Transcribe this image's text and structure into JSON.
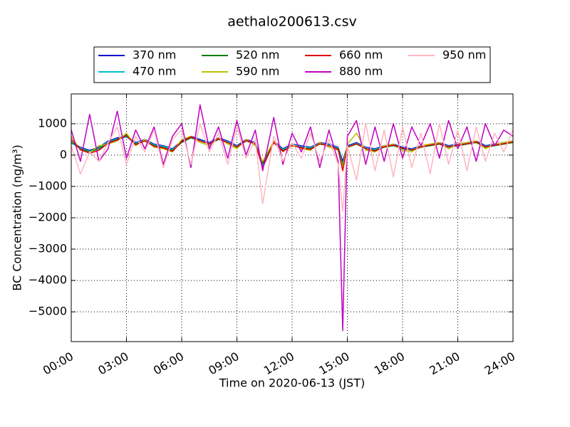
{
  "chart_data": {
    "type": "line",
    "title": "aethalo200613.csv",
    "x_label": "Time on 2020-06-13 (JST)",
    "y_label": "BC Concentration (ng/m³)",
    "x": [
      0,
      0.5,
      1,
      1.5,
      2,
      2.5,
      3,
      3.5,
      4,
      4.5,
      5,
      5.5,
      6,
      6.5,
      7,
      7.5,
      8,
      8.5,
      9,
      9.5,
      10,
      10.4,
      11,
      11.5,
      12,
      12.5,
      13,
      13.5,
      14,
      14.5,
      14.75,
      15,
      15.5,
      16,
      16.5,
      17,
      17.5,
      18,
      18.5,
      19,
      19.5,
      20,
      20.5,
      21,
      21.5,
      22,
      22.5,
      23,
      23.5,
      24
    ],
    "xlim": [
      0,
      24
    ],
    "xticks": [
      {
        "value": 0,
        "label": "00:00"
      },
      {
        "value": 3,
        "label": "03:00"
      },
      {
        "value": 6,
        "label": "06:00"
      },
      {
        "value": 9,
        "label": "09:00"
      },
      {
        "value": 12,
        "label": "12:00"
      },
      {
        "value": 15,
        "label": "15:00"
      },
      {
        "value": 18,
        "label": "18:00"
      },
      {
        "value": 21,
        "label": "21:00"
      },
      {
        "value": 24,
        "label": "24:00"
      }
    ],
    "ylim": [
      -5950,
      1950
    ],
    "yticks": [
      {
        "value": -5000,
        "label": "−5000"
      },
      {
        "value": -4000,
        "label": "−4000"
      },
      {
        "value": -3000,
        "label": "−3000"
      },
      {
        "value": -2000,
        "label": "−2000"
      },
      {
        "value": -1000,
        "label": "−1000"
      },
      0,
      1000
    ],
    "grid": true,
    "series": [
      {
        "name": "370 nm",
        "color": "#0000cc",
        "values": [
          400,
          250,
          150,
          250,
          450,
          550,
          600,
          400,
          500,
          350,
          300,
          200,
          450,
          600,
          500,
          400,
          550,
          450,
          300,
          500,
          400,
          -300,
          450,
          200,
          350,
          300,
          250,
          400,
          350,
          250,
          -200,
          300,
          400,
          250,
          200,
          300,
          350,
          250,
          200,
          300,
          350,
          400,
          300,
          350,
          400,
          450,
          300,
          350,
          400,
          450
        ]
      },
      {
        "name": "470 nm",
        "color": "#00bfcf",
        "values": [
          380,
          230,
          120,
          230,
          430,
          520,
          570,
          380,
          470,
          330,
          280,
          180,
          420,
          570,
          470,
          380,
          520,
          430,
          280,
          470,
          380,
          -350,
          420,
          180,
          330,
          280,
          230,
          380,
          330,
          230,
          -300,
          280,
          380,
          230,
          180,
          280,
          330,
          230,
          180,
          280,
          330,
          380,
          280,
          330,
          380,
          420,
          280,
          330,
          380,
          420
        ]
      },
      {
        "name": "520 nm",
        "color": "#007f00",
        "values": [
          420,
          200,
          100,
          200,
          400,
          500,
          650,
          350,
          450,
          300,
          250,
          150,
          400,
          550,
          450,
          350,
          500,
          400,
          250,
          450,
          350,
          -250,
          400,
          150,
          300,
          250,
          200,
          350,
          300,
          200,
          -350,
          250,
          350,
          200,
          150,
          250,
          300,
          200,
          150,
          250,
          300,
          350,
          250,
          300,
          350,
          400,
          250,
          300,
          350,
          400
        ]
      },
      {
        "name": "590 nm",
        "color": "#bfbf00",
        "values": [
          600,
          150,
          80,
          300,
          350,
          450,
          700,
          300,
          500,
          250,
          200,
          100,
          500,
          600,
          400,
          300,
          550,
          350,
          200,
          500,
          300,
          -200,
          450,
          100,
          350,
          200,
          150,
          400,
          250,
          150,
          -400,
          350,
          700,
          150,
          100,
          300,
          350,
          150,
          100,
          300,
          350,
          400,
          200,
          350,
          400,
          450,
          200,
          350,
          400,
          450
        ]
      },
      {
        "name": "660 nm",
        "color": "#e00000",
        "values": [
          500,
          180,
          60,
          150,
          380,
          480,
          620,
          330,
          450,
          280,
          230,
          120,
          430,
          580,
          450,
          360,
          520,
          400,
          260,
          460,
          360,
          -400,
          400,
          120,
          300,
          230,
          180,
          360,
          300,
          180,
          -500,
          260,
          360,
          200,
          130,
          260,
          320,
          220,
          160,
          260,
          320,
          360,
          260,
          320,
          360,
          420,
          260,
          320,
          360,
          420
        ]
      },
      {
        "name": "880 nm",
        "color": "#bf00bf",
        "values": [
          800,
          -200,
          1300,
          -200,
          200,
          1400,
          -100,
          800,
          200,
          900,
          -300,
          600,
          1000,
          -400,
          1600,
          200,
          900,
          -100,
          1100,
          0,
          800,
          -500,
          1200,
          -300,
          700,
          100,
          900,
          -400,
          800,
          -200,
          -5600,
          600,
          1100,
          -300,
          900,
          -200,
          1000,
          -100,
          900,
          300,
          1000,
          -100,
          1100,
          200,
          900,
          -200,
          1000,
          300,
          800,
          600
        ]
      },
      {
        "name": "950 nm",
        "color": "#ffb6c1",
        "values": [
          300,
          -600,
          100,
          -200,
          400,
          900,
          -300,
          600,
          100,
          800,
          -400,
          500,
          800,
          -300,
          1000,
          100,
          700,
          -300,
          900,
          -100,
          500,
          -1550,
          600,
          -200,
          400,
          -100,
          700,
          -200,
          500,
          -300,
          -1800,
          300,
          -800,
          1000,
          -500,
          800,
          -700,
          900,
          -400,
          700,
          -600,
          1000,
          -300,
          800,
          -500,
          900,
          -200,
          700,
          100,
          800
        ]
      }
    ]
  }
}
